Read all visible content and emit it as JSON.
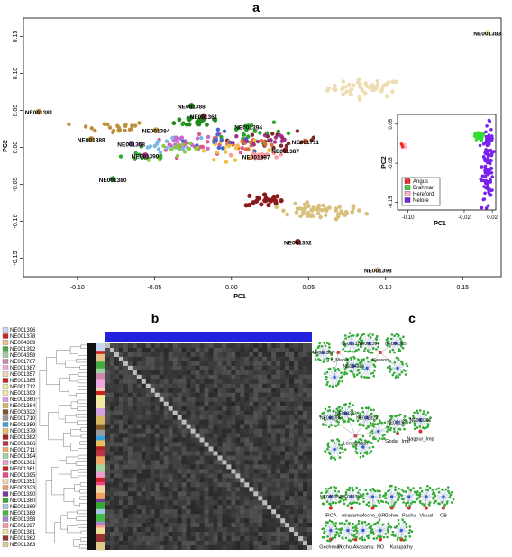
{
  "chart_data": [
    {
      "panel": "a",
      "type": "scatter",
      "xlabel": "PC1",
      "ylabel": "PC2",
      "xlim": [
        -0.135,
        0.175
      ],
      "ylim": [
        -0.175,
        0.175
      ],
      "xticks": [
        "-0.10",
        "-0.05",
        "0.00",
        "0.05",
        "0.10",
        "0.15"
      ],
      "yticks": [
        "-0.15",
        "-0.10",
        "-0.05",
        "0.00",
        "0.05",
        "0.10",
        "0.15"
      ],
      "labeled_points": [
        {
          "label": "NE001383",
          "x": 0.166,
          "y": 0.155,
          "color": "#eeddb0"
        },
        {
          "label": "NE001381",
          "x": -0.125,
          "y": 0.048,
          "color": "#b8913a"
        },
        {
          "label": "NE001388",
          "x": -0.026,
          "y": 0.056,
          "color": "#1f7a1f"
        },
        {
          "label": "NE001361",
          "x": -0.018,
          "y": 0.042,
          "color": "#7a2a2a"
        },
        {
          "label": "NE001394",
          "x": 0.011,
          "y": 0.028,
          "color": "#33aa33"
        },
        {
          "label": "NE001384",
          "x": -0.049,
          "y": 0.023,
          "color": "#c49a3a"
        },
        {
          "label": "NE001389",
          "x": -0.091,
          "y": 0.011,
          "color": "#b8913a"
        },
        {
          "label": "NE001358",
          "x": -0.065,
          "y": 0.005,
          "color": "#7a6aa8"
        },
        {
          "label": "NE001390",
          "x": -0.056,
          "y": -0.011,
          "color": "#b03a8a"
        },
        {
          "label": "NE001380",
          "x": -0.077,
          "y": -0.043,
          "color": "#2b8a2b"
        },
        {
          "label": "NE001711",
          "x": 0.048,
          "y": 0.008,
          "color": "#e06b3a"
        },
        {
          "label": "NE001387",
          "x": 0.035,
          "y": -0.004,
          "color": "#8b2222"
        },
        {
          "label": "NE001397",
          "x": 0.016,
          "y": -0.012,
          "color": "#ff9a9a"
        },
        {
          "label": "NE001362",
          "x": 0.043,
          "y": -0.128,
          "color": "#8b1a1a"
        },
        {
          "label": "NE001398",
          "x": 0.095,
          "y": -0.166,
          "color": "#e8c29a"
        }
      ],
      "clusters": [
        {
          "color": "#eeddb0",
          "cx": 0.087,
          "cy": 0.08,
          "sx": 0.012,
          "sy": 0.006,
          "n": 45,
          "r": 2.3
        },
        {
          "color": "#d8c07a",
          "cx": 0.058,
          "cy": -0.087,
          "sx": 0.014,
          "sy": 0.005,
          "n": 55,
          "r": 2.3
        },
        {
          "color": "#8b1a1a",
          "cx": 0.021,
          "cy": -0.071,
          "sx": 0.006,
          "sy": 0.005,
          "n": 22,
          "r": 2.6
        },
        {
          "color": "#b8913a",
          "cx": -0.078,
          "cy": 0.027,
          "sx": 0.012,
          "sy": 0.004,
          "n": 22,
          "r": 2.2
        },
        {
          "color": "#1f8a1f",
          "cx": -0.02,
          "cy": 0.036,
          "sx": 0.008,
          "sy": 0.004,
          "n": 20,
          "r": 2.4
        },
        {
          "color": "#2aa52a",
          "cx": 0.01,
          "cy": 0.022,
          "sx": 0.012,
          "sy": 0.008,
          "n": 22,
          "r": 2.2
        },
        {
          "color": "#e0568a",
          "cx": -0.02,
          "cy": 0.002,
          "sx": 0.015,
          "sy": 0.007,
          "n": 25,
          "r": 2.2
        },
        {
          "color": "#c86ad0",
          "cx": -0.035,
          "cy": 0.008,
          "sx": 0.012,
          "sy": 0.006,
          "n": 18,
          "r": 2.2
        },
        {
          "color": "#7ab8e8",
          "cx": -0.04,
          "cy": 0.004,
          "sx": 0.01,
          "sy": 0.005,
          "n": 15,
          "r": 2.2
        },
        {
          "color": "#7a2a2a",
          "cx": 0.032,
          "cy": 0.008,
          "sx": 0.012,
          "sy": 0.006,
          "n": 20,
          "r": 2.2
        },
        {
          "color": "#e06b3a",
          "cx": 0.01,
          "cy": 0.005,
          "sx": 0.012,
          "sy": 0.006,
          "n": 18,
          "r": 2.2
        },
        {
          "color": "#f0c040",
          "cx": 0.002,
          "cy": -0.004,
          "sx": 0.014,
          "sy": 0.006,
          "n": 20,
          "r": 2.2
        },
        {
          "color": "#4466cc",
          "cx": -0.012,
          "cy": 0.01,
          "sx": 0.012,
          "sy": 0.006,
          "n": 15,
          "r": 2.2
        },
        {
          "color": "#88cc44",
          "cx": -0.03,
          "cy": -0.006,
          "sx": 0.012,
          "sy": 0.006,
          "n": 16,
          "r": 2.2
        },
        {
          "color": "#a03090",
          "cx": 0.02,
          "cy": 0.01,
          "sx": 0.012,
          "sy": 0.006,
          "n": 14,
          "r": 2.2
        },
        {
          "color": "#ff9a9a",
          "cx": 0.02,
          "cy": -0.01,
          "sx": 0.01,
          "sy": 0.005,
          "n": 12,
          "r": 2.2
        },
        {
          "color": "#33aa33",
          "cx": -0.055,
          "cy": -0.012,
          "sx": 0.008,
          "sy": 0.004,
          "n": 10,
          "r": 2.2
        }
      ]
    },
    {
      "panel": "a-inset",
      "type": "scatter",
      "xlabel": "PC1",
      "ylabel": "PC2",
      "xlim": [
        -0.115,
        0.025
      ],
      "ylim": [
        -0.17,
        0.075
      ],
      "xticks": [
        "-0.10",
        "-0.02",
        "0.02"
      ],
      "yticks": [
        "0.05",
        "-0.05",
        "-0.15"
      ],
      "legend": [
        {
          "name": "Angus",
          "color": "#ff2b2b"
        },
        {
          "name": "Brahman",
          "color": "#33dd33"
        },
        {
          "name": "Hereford",
          "color": "#ffb8c8"
        },
        {
          "name": "Nelore",
          "color": "#7722ee"
        }
      ],
      "clusters": [
        {
          "color": "#ffb8c8",
          "cx": -0.105,
          "cy": -0.007,
          "sx": 0.002,
          "sy": 0.004,
          "n": 6
        },
        {
          "color": "#ff2b2b",
          "cx": -0.108,
          "cy": -0.003,
          "sx": 0.002,
          "sy": 0.003,
          "n": 3
        },
        {
          "color": "#33dd33",
          "cx": 0.001,
          "cy": 0.018,
          "sx": 0.004,
          "sy": 0.005,
          "n": 30
        },
        {
          "color": "#7722ee",
          "cx": 0.014,
          "cy": -0.05,
          "sx": 0.004,
          "sy": 0.045,
          "n": 120
        }
      ]
    },
    {
      "panel": "b",
      "type": "heatmap",
      "legend": [
        {
          "name": "NE001396",
          "color": "#c8d8f0"
        },
        {
          "name": "NE001378",
          "color": "#cc2222"
        },
        {
          "name": "NE004369",
          "color": "#e8c28a"
        },
        {
          "name": "NE001392",
          "color": "#44aa44"
        },
        {
          "name": "NE004358",
          "color": "#a0d0a0"
        },
        {
          "name": "NE001707",
          "color": "#cc88aa"
        },
        {
          "name": "NE001387",
          "color": "#eeaadd"
        },
        {
          "name": "NE001357",
          "color": "#f4d6b6"
        },
        {
          "name": "NE001385",
          "color": "#cc2222"
        },
        {
          "name": "NE001712",
          "color": "#eeee99"
        },
        {
          "name": "NE001393",
          "color": "#f4e8a8"
        },
        {
          "name": "NE001360",
          "color": "#d4a0e0"
        },
        {
          "name": "NE001384",
          "color": "#d8b860"
        },
        {
          "name": "NE003322",
          "color": "#7a5a2a"
        },
        {
          "name": "NE001710",
          "color": "#9a9a9a"
        },
        {
          "name": "NE001359",
          "color": "#3aa0e0"
        },
        {
          "name": "NE001379",
          "color": "#e8c060"
        },
        {
          "name": "NE001382",
          "color": "#aa2222"
        },
        {
          "name": "NE001386",
          "color": "#bb3344"
        },
        {
          "name": "NE001711",
          "color": "#eeaa66"
        },
        {
          "name": "NE001394",
          "color": "#a0d8a0"
        },
        {
          "name": "NE001391",
          "color": "#e8a0c8"
        },
        {
          "name": "NE001361",
          "color": "#cc2222"
        },
        {
          "name": "NE001395",
          "color": "#ee4488"
        },
        {
          "name": "NE001351",
          "color": "#eed8aa"
        },
        {
          "name": "NE003323",
          "color": "#f0a060"
        },
        {
          "name": "NE001390",
          "color": "#7a3a9a"
        },
        {
          "name": "NE001380",
          "color": "#33aa33"
        },
        {
          "name": "NE001389",
          "color": "#a8c8e8"
        },
        {
          "name": "NE001388",
          "color": "#44bb44"
        },
        {
          "name": "NE001358",
          "color": "#aa88cc"
        },
        {
          "name": "NE001397",
          "color": "#ff9999"
        },
        {
          "name": "NE001381",
          "color": "#f0e0a0"
        },
        {
          "name": "NE001362",
          "color": "#993333"
        },
        {
          "name": "NE001383",
          "color": "#ddcc88"
        }
      ]
    },
    {
      "panel": "c",
      "type": "network",
      "hub_labels": [
        "NE001367",
        "NE001378",
        "Tx_Mahat",
        "NE004369",
        "NE001394",
        "Karwon",
        "NE001385",
        "NE001386",
        "NE004363",
        "Longmatan",
        "NE002322",
        "NE003366",
        "NE001380",
        "Godar_Imp",
        "Nagpur_Imp",
        "NE001384",
        "NE001351",
        "IRCA",
        "Akasamu",
        "Mocho_GR",
        "Gohes",
        "Pachu",
        "Visual",
        "OB",
        "Gochevari",
        "Pochu-Akasamu",
        "NO",
        "Kurupathy"
      ],
      "networks": [
        {
          "label": "Tx_Mahat",
          "sub": [
            "NE001367",
            "NE001378",
            "NE004369"
          ],
          "cx": 0.11,
          "cy": 0.1,
          "sats": [
            {
              "dx": -0.08,
              "dy": 0.0
            },
            {
              "dx": 0.07,
              "dy": -0.04
            },
            {
              "dx": 0.08,
              "dy": 0.06
            },
            {
              "dx": -0.02,
              "dy": 0.11
            }
          ]
        },
        {
          "label": "Karwon",
          "sub": [
            "NE001394",
            "NE001385"
          ],
          "cx": 0.33,
          "cy": 0.1,
          "sats": [
            {
              "dx": -0.06,
              "dy": -0.04
            },
            {
              "dx": 0.08,
              "dy": -0.04
            },
            {
              "dx": 0.09,
              "dy": 0.07
            },
            {
              "dx": -0.07,
              "dy": 0.07
            }
          ]
        },
        {
          "label": "Longmatan",
          "sub": [
            "NE001386",
            "NE004363",
            "NE002322"
          ],
          "cx": 0.2,
          "cy": 0.47,
          "sats": [
            {
              "dx": -0.13,
              "dy": -0.08
            },
            {
              "dx": -0.05,
              "dy": -0.1
            },
            {
              "dx": 0.06,
              "dy": -0.08
            },
            {
              "dx": -0.11,
              "dy": 0.06
            },
            {
              "dx": 0.04,
              "dy": 0.05
            },
            {
              "dx": 0.12,
              "dy": -0.02
            }
          ]
        },
        {
          "label": "Godar_Imp",
          "sub": [
            "NE001380"
          ],
          "cx": 0.42,
          "cy": 0.46,
          "sats": [
            {
              "dx": 0.0,
              "dy": -0.05
            }
          ]
        },
        {
          "label": "Nagpur_Imp",
          "sub": [
            "NE003366"
          ],
          "cx": 0.54,
          "cy": 0.45,
          "sats": [
            {
              "dx": 0.0,
              "dy": -0.05
            }
          ]
        },
        {
          "label": "IRCA",
          "sub": [
            "NE001384"
          ],
          "cx": 0.07,
          "cy": 0.79,
          "sats": [
            {
              "dx": 0.0,
              "dy": -0.05
            }
          ]
        },
        {
          "label": "Akasamu",
          "sub": [
            "NE001351"
          ],
          "cx": 0.18,
          "cy": 0.79,
          "sats": [
            {
              "dx": 0.0,
              "dy": -0.05
            }
          ]
        },
        {
          "label": "Mocho_GR",
          "sub": [],
          "cx": 0.29,
          "cy": 0.79,
          "sats": [
            {
              "dx": 0.0,
              "dy": -0.05
            }
          ]
        },
        {
          "label": "Gohes",
          "sub": [],
          "cx": 0.39,
          "cy": 0.79,
          "sats": [
            {
              "dx": 0.0,
              "dy": -0.05
            }
          ]
        },
        {
          "label": "Pachu",
          "sub": [],
          "cx": 0.48,
          "cy": 0.79,
          "sats": [
            {
              "dx": 0.0,
              "dy": -0.05
            }
          ]
        },
        {
          "label": "Visual",
          "sub": [],
          "cx": 0.57,
          "cy": 0.79,
          "sats": [
            {
              "dx": 0.0,
              "dy": -0.05
            }
          ]
        },
        {
          "label": "OB",
          "sub": [],
          "cx": 0.66,
          "cy": 0.79,
          "sats": [
            {
              "dx": 0.0,
              "dy": -0.05
            }
          ]
        },
        {
          "label": "Gochevari",
          "sub": [],
          "cx": 0.07,
          "cy": 0.93,
          "sats": [
            {
              "dx": 0.0,
              "dy": -0.04
            }
          ]
        },
        {
          "label": "Pochu-Akasamu",
          "sub": [],
          "cx": 0.2,
          "cy": 0.93,
          "sats": [
            {
              "dx": -0.04,
              "dy": -0.04
            },
            {
              "dx": 0.04,
              "dy": -0.04
            }
          ]
        },
        {
          "label": "NO",
          "sub": [],
          "cx": 0.33,
          "cy": 0.93,
          "sats": [
            {
              "dx": 0.0,
              "dy": -0.04
            }
          ]
        },
        {
          "label": "Kurupathy",
          "sub": [],
          "cx": 0.44,
          "cy": 0.93,
          "sats": [
            {
              "dx": 0.0,
              "dy": -0.04
            }
          ]
        }
      ]
    }
  ]
}
